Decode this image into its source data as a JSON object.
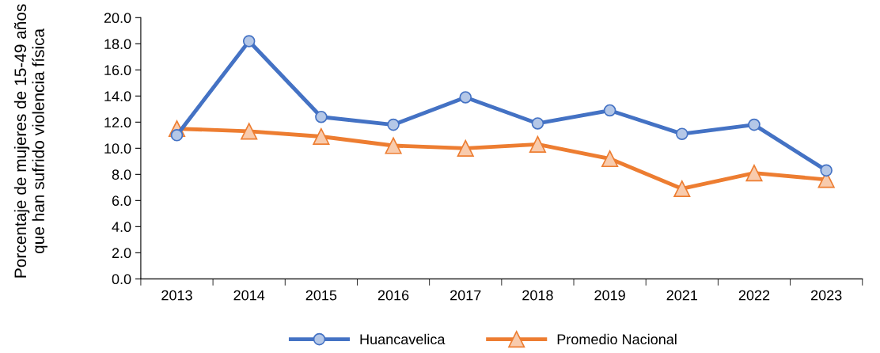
{
  "chart_data": {
    "type": "line",
    "ylabel": "Porcentaje de mujeres de 15-49 años que han sufrido violencia física",
    "categories": [
      "2013",
      "2014",
      "2015",
      "2016",
      "2017",
      "2018",
      "2019",
      "2021",
      "2022",
      "2023"
    ],
    "series": [
      {
        "name": "Huancavelica",
        "color": "#4472c4",
        "marker": "circle",
        "values": [
          11.0,
          18.2,
          12.4,
          11.8,
          13.9,
          11.9,
          12.9,
          11.1,
          11.8,
          8.3
        ]
      },
      {
        "name": "Promedio Nacional",
        "color": "#ed7d31",
        "marker": "triangle",
        "values": [
          11.5,
          11.3,
          10.9,
          10.2,
          10.0,
          10.3,
          9.2,
          6.9,
          8.1,
          7.6
        ]
      }
    ],
    "ylim": [
      0,
      20
    ],
    "yticks": [
      {
        "value": 0,
        "label": "0.0"
      },
      {
        "value": 2,
        "label": "2.0"
      },
      {
        "value": 4,
        "label": "4.0"
      },
      {
        "value": 6,
        "label": "6.0"
      },
      {
        "value": 8,
        "label": "8.0"
      },
      {
        "value": 10,
        "label": "10.0"
      },
      {
        "value": 12,
        "label": "12.0"
      },
      {
        "value": 14,
        "label": "14.0"
      },
      {
        "value": 16,
        "label": "16.0"
      },
      {
        "value": 18,
        "label": "18.0"
      },
      {
        "value": 20,
        "label": "20.0"
      }
    ],
    "grid": false,
    "legend": "bottom",
    "line_style": "solid"
  }
}
